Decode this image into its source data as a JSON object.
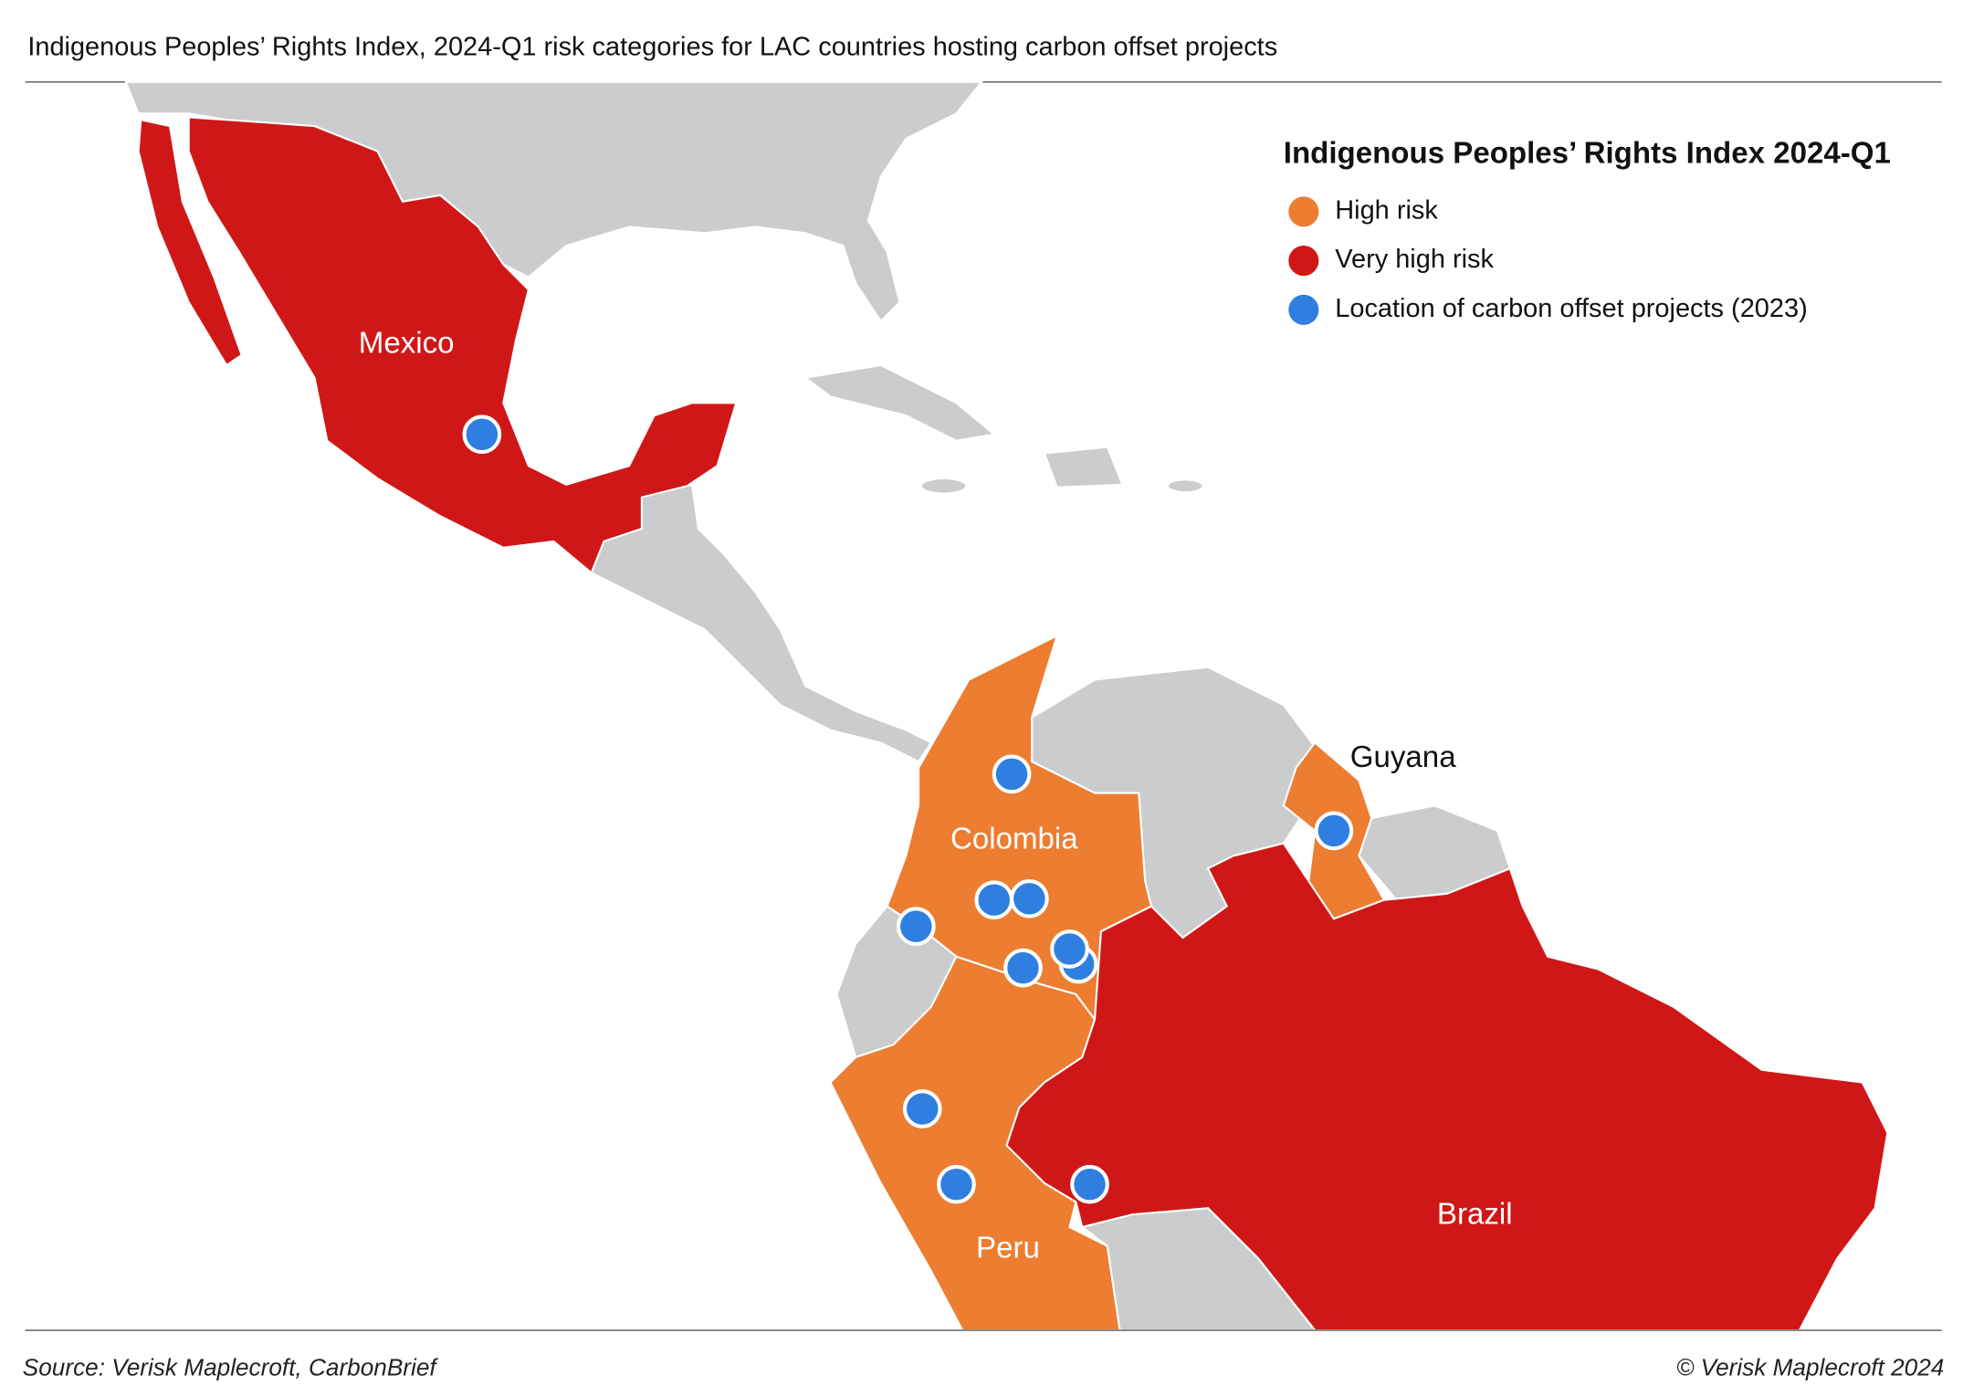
{
  "title": "Indigenous Peoples’ Rights Index, 2024-Q1 risk categories for LAC countries hosting carbon offset projects",
  "legend": {
    "title": "Indigenous Peoples’ Rights Index 2024-Q1",
    "items": [
      {
        "label": "High risk",
        "color": "#ec7d31"
      },
      {
        "label": "Very high risk",
        "color": "#d01717"
      },
      {
        "label": "Location of carbon offset projects (2023)",
        "color": "#2f7fe0"
      }
    ]
  },
  "countries": [
    {
      "label": "Mexico"
    },
    {
      "label": "Colombia"
    },
    {
      "label": "Guyana"
    },
    {
      "label": "Peru"
    },
    {
      "label": "Brazil"
    }
  ],
  "footer": {
    "source": "Source: Verisk Maplecroft, CarbonBrief",
    "copyright": "© Verisk Maplecroft 2024"
  }
}
